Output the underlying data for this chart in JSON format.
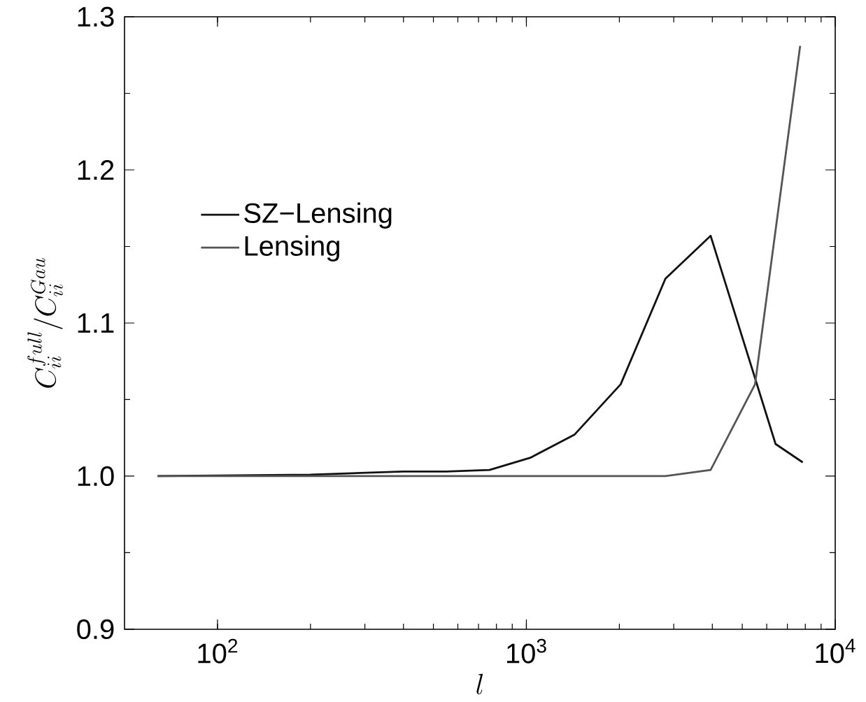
{
  "chart_data": {
    "type": "line",
    "xlabel": "l",
    "ylabel": "C_{ii}^{full}/C_{ii}^{Gau}",
    "log": "x",
    "xlim": [
      50,
      10000
    ],
    "ylim": [
      0.9,
      1.3
    ],
    "xticks": [
      {
        "value": 100,
        "label": "10$^{2}$"
      },
      {
        "value": 1000,
        "label": "10$^{3}$"
      },
      {
        "value": 10000,
        "label": "10$^{4}$"
      }
    ],
    "yticks": [
      {
        "value": 0.9,
        "label": "0.9"
      },
      {
        "value": 1.0,
        "label": "1.0"
      },
      {
        "value": 1.1,
        "label": "1.1"
      },
      {
        "value": 1.2,
        "label": "1.2"
      },
      {
        "value": 1.3,
        "label": "1.3"
      }
    ],
    "legend": "left",
    "grid": false,
    "marker": "none",
    "line_style": "solid",
    "series": [
      {
        "name": "SZ−Lensing",
        "color": "#111111",
        "x": [
          64,
          200,
          400,
          550,
          760,
          1030,
          1430,
          2020,
          2820,
          3950,
          6410,
          7850
        ],
        "values": [
          1.0,
          1.001,
          1.003,
          1.003,
          1.004,
          1.012,
          1.027,
          1.06,
          1.129,
          1.157,
          1.021,
          1.009
        ]
      },
      {
        "name": "Lensing",
        "color": "#555555",
        "x": [
          64,
          2820,
          3950,
          5500,
          7700
        ],
        "values": [
          1.0,
          1.0,
          1.004,
          1.06,
          1.281
        ]
      }
    ]
  }
}
